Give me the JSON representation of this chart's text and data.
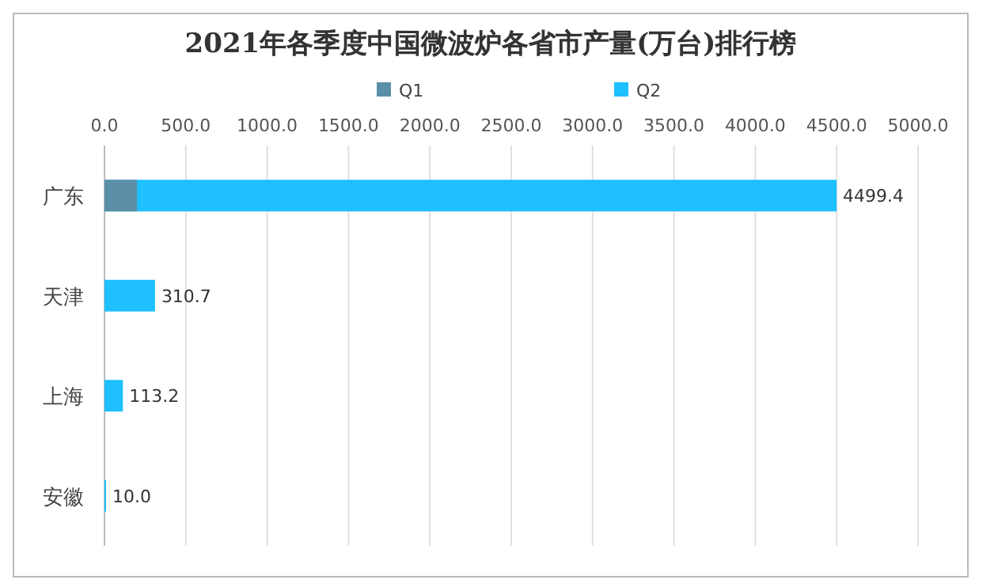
{
  "chart_data": {
    "type": "bar",
    "orientation": "horizontal",
    "title": "2021年各季度中国微波炉各省市产量(万台)排行榜",
    "categories": [
      "广东",
      "天津",
      "上海",
      "安徽"
    ],
    "series": [
      {
        "name": "Q1",
        "color": "#5b8fa8",
        "values": [
          200,
          null,
          null,
          null
        ]
      },
      {
        "name": "Q2",
        "color": "#1ec0ff",
        "values": [
          4499.4,
          310.7,
          113.2,
          10.0
        ],
        "value_labels": [
          "4499.4",
          "310.7",
          "113.2",
          "10.0"
        ]
      }
    ],
    "xlim": [
      0,
      5000
    ],
    "xticks": [
      {
        "value": 0,
        "label": "0.0"
      },
      {
        "value": 500,
        "label": "500.0"
      },
      {
        "value": 1000,
        "label": "1000.0"
      },
      {
        "value": 1500,
        "label": "1500.0"
      },
      {
        "value": 2000,
        "label": "2000.0"
      },
      {
        "value": 2500,
        "label": "2500.0"
      },
      {
        "value": 3000,
        "label": "3000.0"
      },
      {
        "value": 3500,
        "label": "3500.0"
      },
      {
        "value": 4000,
        "label": "4000.0"
      },
      {
        "value": 4500,
        "label": "4500.0"
      },
      {
        "value": 5000,
        "label": "5000.0"
      }
    ],
    "grid": "x",
    "legend": "top"
  }
}
